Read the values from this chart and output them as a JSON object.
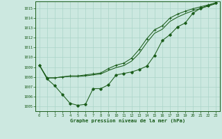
{
  "title": "Graphe pression niveau de la mer (hPa)",
  "bg_color": "#cce8e0",
  "grid_color": "#aad4c8",
  "line_color": "#1a5c1a",
  "xlim": [
    -0.5,
    23.5
  ],
  "ylim": [
    1004.5,
    1015.7
  ],
  "yticks": [
    1005,
    1006,
    1007,
    1008,
    1009,
    1010,
    1011,
    1012,
    1013,
    1014,
    1015
  ],
  "xticks": [
    0,
    1,
    2,
    3,
    4,
    5,
    6,
    7,
    8,
    9,
    10,
    11,
    12,
    13,
    14,
    15,
    16,
    17,
    18,
    19,
    20,
    21,
    22,
    23
  ],
  "line1_x": [
    0,
    1,
    2,
    3,
    4,
    5,
    6,
    7,
    8,
    9,
    10,
    11,
    12,
    13,
    14,
    15,
    16,
    17,
    18,
    19,
    20,
    21,
    22,
    23
  ],
  "line1_y": [
    1009.2,
    1007.8,
    1007.1,
    1006.2,
    1005.3,
    1005.1,
    1005.2,
    1006.8,
    1006.8,
    1007.2,
    1008.2,
    1008.35,
    1008.5,
    1008.75,
    1009.1,
    1010.2,
    1011.7,
    1012.3,
    1013.1,
    1013.5,
    1014.5,
    1015.0,
    1015.3,
    1015.55
  ],
  "line2_x": [
    0,
    1,
    2,
    3,
    4,
    5,
    6,
    7,
    8,
    9,
    10,
    11,
    12,
    13,
    14,
    15,
    16,
    17,
    18,
    19,
    20,
    21,
    22,
    23
  ],
  "line2_y": [
    1009.2,
    1007.9,
    1007.9,
    1008.0,
    1008.1,
    1008.1,
    1008.2,
    1008.3,
    1008.4,
    1008.85,
    1009.2,
    1009.4,
    1009.9,
    1010.8,
    1011.9,
    1012.8,
    1013.2,
    1014.0,
    1014.4,
    1014.7,
    1014.95,
    1015.15,
    1015.35,
    1015.55
  ],
  "line3_x": [
    0,
    1,
    2,
    3,
    4,
    5,
    6,
    7,
    8,
    9,
    10,
    11,
    12,
    13,
    14,
    15,
    16,
    17,
    18,
    19,
    20,
    21,
    22,
    23
  ],
  "line3_y": [
    1009.2,
    1007.9,
    1007.9,
    1008.0,
    1008.05,
    1008.05,
    1008.1,
    1008.2,
    1008.3,
    1008.65,
    1008.95,
    1009.15,
    1009.6,
    1010.4,
    1011.5,
    1012.45,
    1012.85,
    1013.65,
    1014.1,
    1014.45,
    1014.75,
    1014.98,
    1015.22,
    1015.47
  ]
}
